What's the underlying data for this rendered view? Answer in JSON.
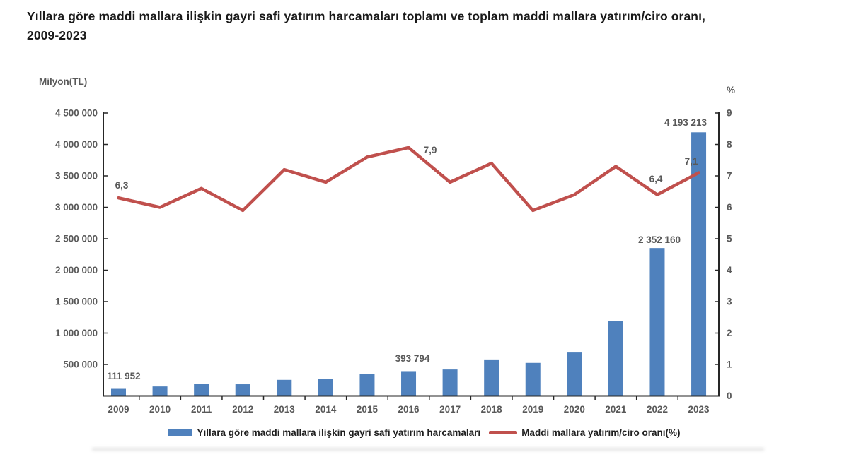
{
  "title": {
    "line1": "Yıllara göre maddi mallara ilişkin gayri safi yatırım harcamaları toplamı ve toplam maddi mallara yatırım/ciro oranı,",
    "line2": "2009-2023"
  },
  "colors": {
    "bar": "#4F81BD",
    "line": "#C0504D",
    "axis_line": "#262626",
    "tick_text": "#595959",
    "title_text": "#1A1A1A",
    "background": "#FFFFFF"
  },
  "axes": {
    "left": {
      "title": "Milyon(TL)",
      "tick_labels": [
        "500 000",
        "1 000 000",
        "1 500 000",
        "2 000 000",
        "2 500 000",
        "3 000 000",
        "3 500 000",
        "4 000 000",
        "4 500 000"
      ]
    },
    "right": {
      "title": "%",
      "tick_labels": [
        "0",
        "1",
        "2",
        "3",
        "4",
        "5",
        "6",
        "7",
        "8",
        "9"
      ]
    },
    "x": {
      "tick_labels": [
        "2009",
        "2010",
        "2011",
        "2012",
        "2013",
        "2014",
        "2015",
        "2016",
        "2017",
        "2018",
        "2019",
        "2020",
        "2021",
        "2022",
        "2023"
      ]
    }
  },
  "legend": {
    "items": [
      {
        "swatch": "bar-swatch",
        "color": "#4F81BD",
        "label": "Yıllara göre maddi mallara ilişkin gayri safi yatırım harcamaları"
      },
      {
        "swatch": "line-swatch",
        "color": "#C0504D",
        "label": "Maddi mallara yatırım/ciro oranı(%)"
      }
    ]
  },
  "chart_data": {
    "type": "combo",
    "categories": [
      "2009",
      "2010",
      "2011",
      "2012",
      "2013",
      "2014",
      "2015",
      "2016",
      "2017",
      "2018",
      "2019",
      "2020",
      "2021",
      "2022",
      "2023"
    ],
    "series": [
      {
        "name": "Yıllara göre maddi mallara ilişkin gayri safi yatırım harcamaları",
        "type": "bar",
        "y_axis": "left",
        "color": "#4F81BD",
        "values": [
          111952,
          150000,
          190000,
          185000,
          255000,
          265000,
          350000,
          393794,
          420000,
          580000,
          525000,
          690000,
          1190000,
          2352160,
          4193213
        ],
        "value_labels_shown": {
          "0": "111 952",
          "7": "393 794",
          "13": "2 352 160",
          "14": "4 193 213"
        }
      },
      {
        "name": "Maddi mallara yatırım/ciro oranı(%)",
        "type": "line",
        "y_axis": "right",
        "color": "#C0504D",
        "values": [
          6.3,
          6.0,
          6.6,
          5.9,
          7.2,
          6.8,
          7.6,
          7.9,
          6.8,
          7.4,
          5.9,
          6.4,
          7.3,
          6.4,
          7.1
        ],
        "value_labels_shown": {
          "0": "6,3",
          "7": "7,9",
          "13": "6,4",
          "14": "7,1"
        }
      }
    ],
    "left_axis_title": "Milyon(TL)",
    "right_axis_title": "%",
    "left_axis_range": [
      0,
      4500000
    ],
    "left_tick_step": 500000,
    "right_axis_range": [
      0,
      9
    ],
    "right_tick_step": 1,
    "grid": false,
    "legend_position": "bottom"
  }
}
